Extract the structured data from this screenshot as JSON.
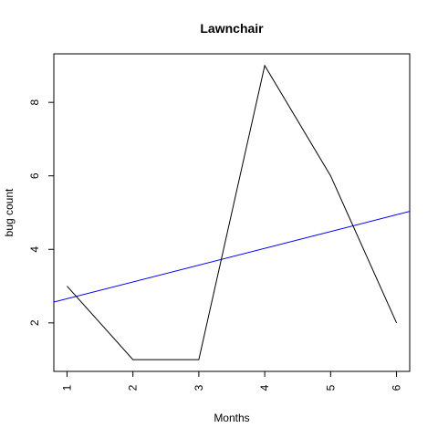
{
  "chart_data": {
    "type": "line",
    "title": "Lawnchair",
    "xlabel": "Months",
    "ylabel": "bug count",
    "x": [
      1,
      2,
      3,
      4,
      5,
      6
    ],
    "series": [
      {
        "values": [
          3,
          1,
          1,
          9,
          6,
          2
        ],
        "color": "#000000"
      }
    ],
    "trend_line": {
      "intercept": 2.2,
      "slope": 0.457,
      "color": "#0000ff"
    },
    "xticks": [
      1,
      2,
      3,
      4,
      5,
      6
    ],
    "yticks": [
      2,
      4,
      6,
      8
    ],
    "xlim": [
      0.8,
      6.2
    ],
    "ylim": [
      0.68,
      9.32
    ],
    "grid": false,
    "legend": "none"
  }
}
